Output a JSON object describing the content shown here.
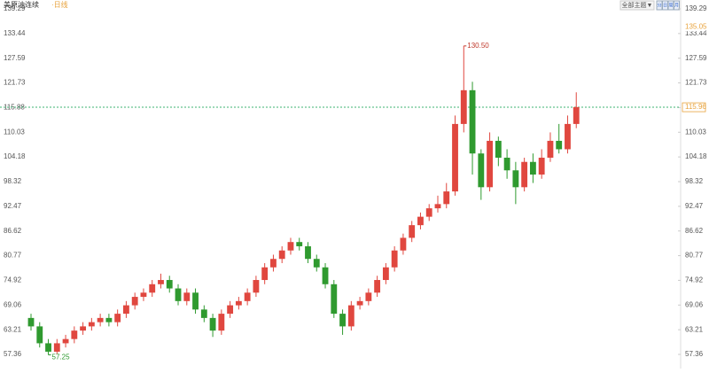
{
  "chart_data": {
    "type": "candlestick",
    "title": "美原油连续",
    "subtitle": "·日线",
    "menu_button": "全部主题▼",
    "period_buttons": [
      "分",
      "日",
      "周",
      "月"
    ],
    "up_color": "#e0473f",
    "down_color": "#2f9a2f",
    "ylim": [
      57.36,
      139.29
    ],
    "yticks": [
      57.36,
      63.21,
      69.06,
      74.92,
      80.77,
      86.62,
      92.47,
      98.32,
      104.18,
      110.03,
      115.88,
      121.73,
      127.59,
      133.44,
      139.29
    ],
    "open": [
      66,
      64,
      60,
      58,
      60,
      61,
      63,
      64,
      65,
      66,
      65,
      67,
      69,
      71,
      72,
      74,
      75,
      73,
      70,
      72,
      68,
      66,
      63,
      67,
      69,
      70,
      72,
      75,
      78,
      80,
      82,
      84,
      83,
      80,
      78,
      74,
      67,
      64,
      69,
      70,
      72,
      75,
      78,
      82,
      85,
      88,
      90,
      92,
      93,
      96,
      112,
      120,
      105,
      97,
      108,
      104,
      101,
      97,
      103,
      100,
      104,
      108,
      106,
      112
    ],
    "high": [
      67,
      65,
      61,
      61,
      62,
      64,
      65,
      66,
      67,
      67,
      68,
      70,
      72,
      73,
      75,
      76.5,
      76,
      74,
      73,
      73,
      69,
      67,
      68,
      70,
      71,
      73,
      76,
      79,
      81,
      83,
      85,
      85,
      84,
      81,
      79,
      75,
      68,
      70,
      71,
      73,
      76,
      79,
      83,
      86,
      89,
      91,
      93,
      95,
      98,
      114,
      130.5,
      122,
      106,
      110,
      109,
      106,
      103,
      104,
      105,
      106,
      110,
      112,
      114,
      119.5
    ],
    "low": [
      63,
      59,
      57.25,
      57.5,
      59,
      60,
      62,
      63,
      64,
      64,
      64,
      66,
      68,
      70,
      71,
      73,
      72,
      69,
      69,
      67,
      65,
      61.5,
      62,
      66,
      68,
      69,
      71,
      74,
      77,
      79,
      81,
      82,
      79,
      77,
      73,
      66,
      62,
      63,
      68,
      69,
      71,
      74,
      77,
      81,
      84,
      87,
      89,
      91,
      92,
      95,
      110,
      100,
      94,
      96,
      102,
      99,
      93,
      96,
      98,
      99,
      103,
      105,
      105,
      111
    ],
    "close": [
      64,
      60,
      58,
      60,
      61,
      63,
      64,
      65,
      66,
      65,
      67,
      69,
      71,
      72,
      74,
      75,
      73,
      70,
      72,
      68,
      66,
      63,
      67,
      69,
      70,
      72,
      75,
      78,
      80,
      82,
      84,
      83,
      80,
      78,
      74,
      67,
      64,
      69,
      70,
      72,
      75,
      78,
      82,
      85,
      88,
      90,
      92,
      93,
      96,
      112,
      120,
      105,
      97,
      108,
      104,
      101,
      97,
      103,
      100,
      104,
      108,
      106,
      112,
      116
    ],
    "annotations": [
      {
        "value": 130.5,
        "label": "130.50",
        "color": "#c0392b"
      },
      {
        "value": 57.25,
        "label": "57.25",
        "color": "#2f9a2f"
      }
    ],
    "right_markers": [
      {
        "value": 135.05,
        "label": "135.05",
        "color": "#e8a33c"
      },
      {
        "value": 115.96,
        "label": "115.96",
        "color": "#e8a33c"
      }
    ],
    "current_price": 115.96,
    "current_price_color": "#3cb371"
  }
}
